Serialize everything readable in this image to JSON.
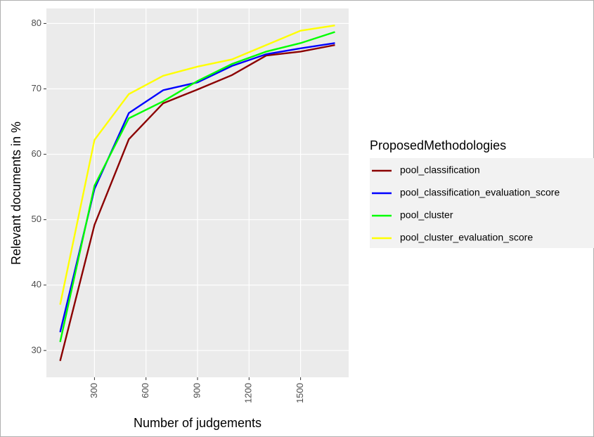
{
  "chart_data": {
    "type": "line",
    "x_label": "Number of judgements",
    "y_label": "Relevant documents in %",
    "legend_title": "ProposedMethodologies",
    "legend_position": "right",
    "grid": true,
    "x": [
      100,
      300,
      500,
      700,
      900,
      1100,
      1300,
      1500,
      1700
    ],
    "series": [
      {
        "name": "pool_classification",
        "color": "#8b0000",
        "values": [
          28.4,
          49.2,
          62.3,
          67.8,
          69.9,
          72.1,
          75.1,
          75.7,
          76.7
        ]
      },
      {
        "name": "pool_classification_evaluation_score",
        "color": "#0000ff",
        "values": [
          32.8,
          54.7,
          66.3,
          69.8,
          71.0,
          73.5,
          75.3,
          76.2,
          77.0
        ]
      },
      {
        "name": "pool_cluster",
        "color": "#00ff00",
        "values": [
          31.3,
          55.2,
          65.5,
          68.1,
          71.2,
          73.8,
          75.7,
          77.0,
          78.7
        ]
      },
      {
        "name": "pool_cluster_evaluation_score",
        "color": "#ffff00",
        "values": [
          37.0,
          62.2,
          69.2,
          72.0,
          73.4,
          74.5,
          76.7,
          78.9,
          79.7
        ]
      }
    ],
    "xlim": [
      20,
      1780
    ],
    "xticks": [
      300,
      600,
      900,
      1200,
      1500
    ],
    "ylim": [
      25.9,
      82.3
    ],
    "yticks": [
      30,
      40,
      50,
      60,
      70,
      80
    ]
  }
}
